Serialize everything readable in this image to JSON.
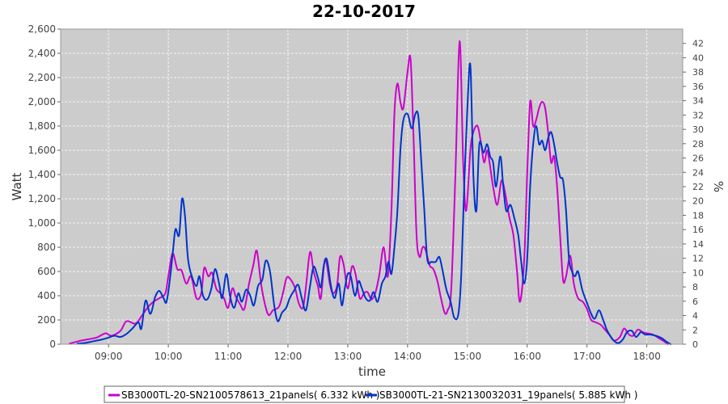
{
  "chart_data": {
    "type": "line",
    "title": "22-10-2017",
    "xlabel": "time",
    "ylabel": "Watt",
    "y2label": "%",
    "x_ticks": [
      "09:00",
      "10:00",
      "11:00",
      "12:00",
      "13:00",
      "14:00",
      "15:00",
      "16:00",
      "17:00",
      "18:00"
    ],
    "x_tick_hours": [
      9,
      10,
      11,
      12,
      13,
      14,
      15,
      16,
      17,
      18
    ],
    "xlim": [
      8.2,
      18.6
    ],
    "ylim": [
      0,
      2600
    ],
    "y_ticks": [
      "0",
      "200",
      "400",
      "600",
      "800",
      "1,000",
      "1,200",
      "1,400",
      "1,600",
      "1,800",
      "2,000",
      "2,200",
      "2,400",
      "2,600"
    ],
    "y_tick_values": [
      0,
      200,
      400,
      600,
      800,
      1000,
      1200,
      1400,
      1600,
      1800,
      2000,
      2200,
      2400,
      2600
    ],
    "y2lim": [
      0,
      44
    ],
    "y2_ticks": [
      "0",
      "2",
      "4",
      "6",
      "8",
      "10",
      "12",
      "14",
      "16",
      "18",
      "20",
      "22",
      "24",
      "26",
      "28",
      "30",
      "32",
      "34",
      "36",
      "38",
      "40",
      "42"
    ],
    "y2_tick_values": [
      0,
      2,
      4,
      6,
      8,
      10,
      12,
      14,
      16,
      18,
      20,
      22,
      24,
      26,
      28,
      30,
      32,
      34,
      36,
      38,
      40,
      42
    ],
    "grid": true,
    "legend_position": "bottom",
    "series": [
      {
        "name": "SB3000TL-20-SN2100578613_21panels( 6.332 kWh )",
        "color": "#cc00cc",
        "points": [
          [
            8.35,
            5
          ],
          [
            8.5,
            25
          ],
          [
            8.65,
            40
          ],
          [
            8.8,
            55
          ],
          [
            8.95,
            90
          ],
          [
            9.05,
            70
          ],
          [
            9.2,
            110
          ],
          [
            9.3,
            190
          ],
          [
            9.45,
            170
          ],
          [
            9.55,
            230
          ],
          [
            9.65,
            300
          ],
          [
            9.75,
            350
          ],
          [
            9.85,
            380
          ],
          [
            9.95,
            420
          ],
          [
            10.0,
            560
          ],
          [
            10.07,
            750
          ],
          [
            10.15,
            620
          ],
          [
            10.22,
            610
          ],
          [
            10.3,
            500
          ],
          [
            10.38,
            560
          ],
          [
            10.47,
            380
          ],
          [
            10.55,
            420
          ],
          [
            10.6,
            630
          ],
          [
            10.67,
            560
          ],
          [
            10.73,
            590
          ],
          [
            10.8,
            460
          ],
          [
            10.87,
            420
          ],
          [
            10.93,
            380
          ],
          [
            11.0,
            300
          ],
          [
            11.07,
            460
          ],
          [
            11.13,
            390
          ],
          [
            11.2,
            330
          ],
          [
            11.27,
            290
          ],
          [
            11.35,
            500
          ],
          [
            11.42,
            650
          ],
          [
            11.48,
            770
          ],
          [
            11.55,
            500
          ],
          [
            11.62,
            320
          ],
          [
            11.68,
            240
          ],
          [
            11.75,
            280
          ],
          [
            11.85,
            310
          ],
          [
            11.92,
            430
          ],
          [
            11.98,
            550
          ],
          [
            12.05,
            530
          ],
          [
            12.12,
            460
          ],
          [
            12.18,
            340
          ],
          [
            12.25,
            300
          ],
          [
            12.3,
            470
          ],
          [
            12.37,
            760
          ],
          [
            12.43,
            600
          ],
          [
            12.5,
            480
          ],
          [
            12.55,
            380
          ],
          [
            12.62,
            700
          ],
          [
            12.7,
            500
          ],
          [
            12.75,
            420
          ],
          [
            12.82,
            480
          ],
          [
            12.87,
            720
          ],
          [
            12.93,
            660
          ],
          [
            13.0,
            460
          ],
          [
            13.07,
            640
          ],
          [
            13.13,
            580
          ],
          [
            13.2,
            380
          ],
          [
            13.27,
            420
          ],
          [
            13.33,
            430
          ],
          [
            13.4,
            370
          ],
          [
            13.47,
            440
          ],
          [
            13.53,
            580
          ],
          [
            13.6,
            800
          ],
          [
            13.67,
            560
          ],
          [
            13.73,
            1100
          ],
          [
            13.78,
            1900
          ],
          [
            13.83,
            2150
          ],
          [
            13.88,
            2000
          ],
          [
            13.93,
            1950
          ],
          [
            14.0,
            2250
          ],
          [
            14.05,
            2350
          ],
          [
            14.1,
            1700
          ],
          [
            14.15,
            900
          ],
          [
            14.2,
            720
          ],
          [
            14.25,
            800
          ],
          [
            14.3,
            780
          ],
          [
            14.37,
            650
          ],
          [
            14.43,
            620
          ],
          [
            14.5,
            520
          ],
          [
            14.55,
            400
          ],
          [
            14.62,
            260
          ],
          [
            14.67,
            280
          ],
          [
            14.73,
            450
          ],
          [
            14.8,
            1400
          ],
          [
            14.87,
            2500
          ],
          [
            14.93,
            1500
          ],
          [
            14.98,
            1100
          ],
          [
            15.05,
            1600
          ],
          [
            15.1,
            1750
          ],
          [
            15.17,
            1800
          ],
          [
            15.23,
            1650
          ],
          [
            15.28,
            1500
          ],
          [
            15.33,
            1600
          ],
          [
            15.37,
            1500
          ],
          [
            15.43,
            1300
          ],
          [
            15.5,
            1150
          ],
          [
            15.57,
            1350
          ],
          [
            15.63,
            1250
          ],
          [
            15.7,
            1050
          ],
          [
            15.77,
            900
          ],
          [
            15.83,
            600
          ],
          [
            15.88,
            350
          ],
          [
            15.95,
            700
          ],
          [
            16.0,
            1400
          ],
          [
            16.05,
            2000
          ],
          [
            16.1,
            1800
          ],
          [
            16.15,
            1850
          ],
          [
            16.2,
            1950
          ],
          [
            16.25,
            2000
          ],
          [
            16.3,
            1950
          ],
          [
            16.35,
            1750
          ],
          [
            16.4,
            1500
          ],
          [
            16.45,
            1550
          ],
          [
            16.5,
            1300
          ],
          [
            16.55,
            900
          ],
          [
            16.6,
            530
          ],
          [
            16.65,
            560
          ],
          [
            16.72,
            730
          ],
          [
            16.78,
            500
          ],
          [
            16.85,
            380
          ],
          [
            16.93,
            350
          ],
          [
            17.0,
            290
          ],
          [
            17.07,
            200
          ],
          [
            17.15,
            180
          ],
          [
            17.23,
            160
          ],
          [
            17.3,
            120
          ],
          [
            17.37,
            80
          ],
          [
            17.45,
            30
          ],
          [
            17.55,
            60
          ],
          [
            17.62,
            130
          ],
          [
            17.7,
            80
          ],
          [
            17.77,
            70
          ],
          [
            17.85,
            120
          ],
          [
            17.93,
            100
          ],
          [
            18.0,
            90
          ],
          [
            18.1,
            80
          ],
          [
            18.2,
            50
          ],
          [
            18.3,
            20
          ],
          [
            18.35,
            0
          ]
        ]
      },
      {
        "name": "SB3000TL-21-SN2130032031_19panels( 5.885 kWh )",
        "color": "#0033cc",
        "points": [
          [
            8.48,
            5
          ],
          [
            8.6,
            10
          ],
          [
            8.75,
            25
          ],
          [
            8.9,
            40
          ],
          [
            9.0,
            55
          ],
          [
            9.1,
            70
          ],
          [
            9.2,
            60
          ],
          [
            9.3,
            85
          ],
          [
            9.4,
            130
          ],
          [
            9.5,
            180
          ],
          [
            9.55,
            130
          ],
          [
            9.62,
            360
          ],
          [
            9.7,
            250
          ],
          [
            9.78,
            390
          ],
          [
            9.85,
            440
          ],
          [
            9.92,
            380
          ],
          [
            9.97,
            350
          ],
          [
            10.03,
            550
          ],
          [
            10.08,
            780
          ],
          [
            10.12,
            950
          ],
          [
            10.18,
            900
          ],
          [
            10.23,
            1200
          ],
          [
            10.28,
            1050
          ],
          [
            10.33,
            700
          ],
          [
            10.4,
            550
          ],
          [
            10.47,
            480
          ],
          [
            10.52,
            560
          ],
          [
            10.58,
            400
          ],
          [
            10.65,
            370
          ],
          [
            10.72,
            460
          ],
          [
            10.78,
            620
          ],
          [
            10.85,
            500
          ],
          [
            10.9,
            380
          ],
          [
            10.97,
            580
          ],
          [
            11.03,
            400
          ],
          [
            11.1,
            300
          ],
          [
            11.17,
            420
          ],
          [
            11.23,
            350
          ],
          [
            11.3,
            450
          ],
          [
            11.37,
            400
          ],
          [
            11.43,
            320
          ],
          [
            11.5,
            480
          ],
          [
            11.57,
            530
          ],
          [
            11.63,
            690
          ],
          [
            11.7,
            600
          ],
          [
            11.77,
            320
          ],
          [
            11.83,
            190
          ],
          [
            11.9,
            260
          ],
          [
            11.97,
            300
          ],
          [
            12.03,
            380
          ],
          [
            12.1,
            440
          ],
          [
            12.17,
            490
          ],
          [
            12.23,
            380
          ],
          [
            12.3,
            280
          ],
          [
            12.37,
            480
          ],
          [
            12.43,
            640
          ],
          [
            12.5,
            550
          ],
          [
            12.55,
            470
          ],
          [
            12.6,
            650
          ],
          [
            12.65,
            700
          ],
          [
            12.72,
            480
          ],
          [
            12.78,
            380
          ],
          [
            12.85,
            500
          ],
          [
            12.9,
            320
          ],
          [
            12.95,
            460
          ],
          [
            13.0,
            580
          ],
          [
            13.05,
            560
          ],
          [
            13.12,
            400
          ],
          [
            13.18,
            520
          ],
          [
            13.23,
            470
          ],
          [
            13.3,
            380
          ],
          [
            13.37,
            360
          ],
          [
            13.43,
            430
          ],
          [
            13.5,
            350
          ],
          [
            13.57,
            500
          ],
          [
            13.63,
            560
          ],
          [
            13.68,
            680
          ],
          [
            13.73,
            580
          ],
          [
            13.78,
            800
          ],
          [
            13.83,
            1100
          ],
          [
            13.88,
            1600
          ],
          [
            13.93,
            1850
          ],
          [
            14.0,
            1900
          ],
          [
            14.07,
            1780
          ],
          [
            14.13,
            1900
          ],
          [
            14.18,
            1880
          ],
          [
            14.23,
            1500
          ],
          [
            14.28,
            1100
          ],
          [
            14.33,
            700
          ],
          [
            14.4,
            680
          ],
          [
            14.47,
            680
          ],
          [
            14.53,
            720
          ],
          [
            14.58,
            620
          ],
          [
            14.65,
            450
          ],
          [
            14.72,
            350
          ],
          [
            14.78,
            220
          ],
          [
            14.85,
            250
          ],
          [
            14.9,
            600
          ],
          [
            14.95,
            1350
          ],
          [
            15.0,
            1950
          ],
          [
            15.05,
            2300
          ],
          [
            15.1,
            1400
          ],
          [
            15.15,
            1100
          ],
          [
            15.2,
            1650
          ],
          [
            15.27,
            1580
          ],
          [
            15.33,
            1650
          ],
          [
            15.38,
            1550
          ],
          [
            15.43,
            1500
          ],
          [
            15.48,
            1300
          ],
          [
            15.55,
            1550
          ],
          [
            15.6,
            1300
          ],
          [
            15.65,
            1100
          ],
          [
            15.72,
            1150
          ],
          [
            15.78,
            1050
          ],
          [
            15.85,
            900
          ],
          [
            15.9,
            680
          ],
          [
            15.95,
            500
          ],
          [
            16.0,
            700
          ],
          [
            16.05,
            1300
          ],
          [
            16.1,
            1650
          ],
          [
            16.15,
            1800
          ],
          [
            16.2,
            1650
          ],
          [
            16.25,
            1680
          ],
          [
            16.3,
            1600
          ],
          [
            16.35,
            1700
          ],
          [
            16.4,
            1750
          ],
          [
            16.45,
            1650
          ],
          [
            16.5,
            1500
          ],
          [
            16.55,
            1380
          ],
          [
            16.6,
            1350
          ],
          [
            16.65,
            1100
          ],
          [
            16.7,
            700
          ],
          [
            16.75,
            600
          ],
          [
            16.8,
            560
          ],
          [
            16.85,
            600
          ],
          [
            16.92,
            450
          ],
          [
            17.0,
            340
          ],
          [
            17.07,
            250
          ],
          [
            17.13,
            210
          ],
          [
            17.2,
            280
          ],
          [
            17.27,
            200
          ],
          [
            17.33,
            120
          ],
          [
            17.4,
            60
          ],
          [
            17.47,
            20
          ],
          [
            17.53,
            10
          ],
          [
            17.6,
            40
          ],
          [
            17.67,
            100
          ],
          [
            17.75,
            110
          ],
          [
            17.82,
            60
          ],
          [
            17.9,
            100
          ],
          [
            17.97,
            80
          ],
          [
            18.05,
            80
          ],
          [
            18.15,
            70
          ],
          [
            18.25,
            50
          ],
          [
            18.33,
            20
          ],
          [
            18.4,
            0
          ]
        ]
      }
    ]
  }
}
